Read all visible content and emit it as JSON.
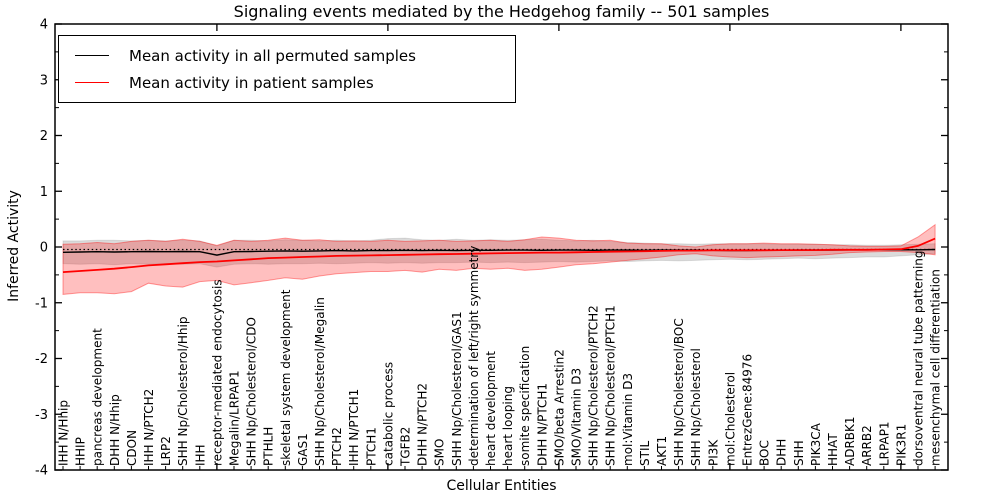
{
  "chart_data": {
    "type": "line",
    "title": "Signaling events mediated by the Hedgehog family -- 501 samples",
    "xlabel": "Cellular Entities",
    "ylabel": "Inferred Activity",
    "ylim": [
      -4,
      4
    ],
    "ytick_labels": [
      "4",
      "3",
      "2",
      "1",
      "0",
      "-1",
      "-2",
      "-3",
      "-4"
    ],
    "xtick_major_positions": [
      10,
      20,
      30,
      40,
      50
    ],
    "grid": false,
    "legend": {
      "position": "upper left",
      "entries": [
        {
          "label": "Mean activity in all permuted samples",
          "color": "#000000"
        },
        {
          "label": "Mean activity in patient samples",
          "color": "#ff0000"
        }
      ]
    },
    "categories": [
      "IHH N/Hhip",
      "HHIP",
      "pancreas development",
      "DHH N/Hhip",
      "CDON",
      "IHH N/PTCH2",
      "LRP2",
      "SHH Np/Cholesterol/Hhip",
      "IHH",
      "receptor-mediated endocytosis",
      "Megalin/LRPAP1",
      "SHH Np/Cholesterol/CDO",
      "PTHLH",
      "skeletal system development",
      "GAS1",
      "SHH Np/Cholesterol/Megalin",
      "PTCH2",
      "IHH N/PTCH1",
      "PTCH1",
      "catabolic process",
      "TGFB2",
      "DHH N/PTCH2",
      "SMO",
      "SHH Np/Cholesterol/GAS1",
      "determination of left/right symmetry",
      "heart development",
      "heart looping",
      "somite specification",
      "DHH N/PTCH1",
      "SMO/beta Arrestin2",
      "SMO/Vitamin D3",
      "SHH Np/Cholesterol/PTCH2",
      "SHH Np/Cholesterol/PTCH1",
      "mol:Vitamin D3",
      "STIL",
      "AKT1",
      "SHH Np/Cholesterol/BOC",
      "SHH Np/Cholesterol",
      "PI3K",
      "mol:Cholesterol",
      "EntrezGene:84976",
      "BOC",
      "DHH",
      "SHH",
      "PIK3CA",
      "HHAT",
      "ADRBK1",
      "ARRB2",
      "LRPAP1",
      "PIK3R1",
      "dorsoventral neural tube patterning",
      "mesenchymal cell differentiation"
    ],
    "series": [
      {
        "name": "Mean activity in all permuted samples",
        "color": "#000000",
        "values": [
          -0.095,
          -0.09,
          -0.085,
          -0.09,
          -0.085,
          -0.08,
          -0.085,
          -0.08,
          -0.085,
          -0.145,
          -0.085,
          -0.08,
          -0.075,
          -0.07,
          -0.075,
          -0.07,
          -0.065,
          -0.07,
          -0.065,
          -0.065,
          -0.06,
          -0.065,
          -0.06,
          -0.065,
          -0.06,
          -0.06,
          -0.055,
          -0.055,
          -0.06,
          -0.055,
          -0.055,
          -0.06,
          -0.055,
          -0.055,
          -0.06,
          -0.055,
          -0.055,
          -0.055,
          -0.06,
          -0.065,
          -0.065,
          -0.06,
          -0.06,
          -0.055,
          -0.055,
          -0.055,
          -0.05,
          -0.05,
          -0.05,
          -0.05,
          -0.05,
          -0.045
        ]
      },
      {
        "name": "Mean activity in patient samples",
        "color": "#ff0000",
        "values": [
          -0.45,
          -0.43,
          -0.41,
          -0.39,
          -0.36,
          -0.33,
          -0.31,
          -0.29,
          -0.27,
          -0.26,
          -0.24,
          -0.22,
          -0.2,
          -0.19,
          -0.18,
          -0.17,
          -0.16,
          -0.155,
          -0.15,
          -0.145,
          -0.14,
          -0.135,
          -0.13,
          -0.125,
          -0.12,
          -0.115,
          -0.11,
          -0.105,
          -0.1,
          -0.1,
          -0.095,
          -0.09,
          -0.085,
          -0.08,
          -0.075,
          -0.07,
          -0.065,
          -0.065,
          -0.06,
          -0.06,
          -0.06,
          -0.06,
          -0.055,
          -0.055,
          -0.055,
          -0.05,
          -0.05,
          -0.05,
          -0.045,
          -0.04,
          0.02,
          0.15
        ]
      }
    ],
    "bands": [
      {
        "name": "permuted samples range",
        "fill": "rgba(0,0,0,0.14)",
        "edge": "rgba(0,0,0,0.10)",
        "upper": [
          0.11,
          0.11,
          0.12,
          0.12,
          0.11,
          0.12,
          0.11,
          0.12,
          0.11,
          0.02,
          0.12,
          0.12,
          0.11,
          0.13,
          0.12,
          0.11,
          0.12,
          0.11,
          0.12,
          0.15,
          0.16,
          0.13,
          0.12,
          0.14,
          0.12,
          0.13,
          0.12,
          0.13,
          0.14,
          0.12,
          0.11,
          0.12,
          0.1,
          0.08,
          0.07,
          0.06,
          0.06,
          0.05,
          0.06,
          0.06,
          0.06,
          0.06,
          0.05,
          0.05,
          0.05,
          0.04,
          0.04,
          0.03,
          0.03,
          0.04,
          0.05,
          0.06
        ],
        "lower": [
          -0.3,
          -0.31,
          -0.3,
          -0.32,
          -0.3,
          -0.31,
          -0.3,
          -0.31,
          -0.3,
          -0.36,
          -0.31,
          -0.3,
          -0.31,
          -0.3,
          -0.3,
          -0.29,
          -0.3,
          -0.29,
          -0.28,
          -0.29,
          -0.28,
          -0.29,
          -0.28,
          -0.28,
          -0.27,
          -0.28,
          -0.27,
          -0.28,
          -0.27,
          -0.26,
          -0.27,
          -0.26,
          -0.25,
          -0.26,
          -0.25,
          -0.24,
          -0.25,
          -0.24,
          -0.23,
          -0.22,
          -0.23,
          -0.22,
          -0.21,
          -0.2,
          -0.21,
          -0.2,
          -0.19,
          -0.18,
          -0.18,
          -0.16,
          -0.14,
          -0.12
        ]
      },
      {
        "name": "patient samples range",
        "fill": "rgba(255,0,0,0.25)",
        "edge": "rgba(255,0,0,0.38)",
        "upper": [
          0.05,
          0.06,
          0.08,
          0.06,
          0.1,
          0.12,
          0.1,
          0.14,
          0.1,
          0.03,
          0.12,
          0.1,
          0.12,
          0.16,
          0.12,
          0.13,
          0.1,
          0.11,
          0.1,
          0.12,
          0.1,
          0.11,
          0.12,
          0.1,
          0.11,
          0.12,
          0.1,
          0.13,
          0.18,
          0.16,
          0.12,
          0.11,
          0.12,
          0.07,
          0.06,
          0.06,
          0.02,
          0.0,
          0.04,
          0.06,
          0.06,
          0.07,
          0.06,
          0.06,
          0.05,
          0.04,
          0.02,
          0.01,
          0.01,
          0.02,
          0.18,
          0.4
        ],
        "lower": [
          -0.85,
          -0.82,
          -0.82,
          -0.84,
          -0.8,
          -0.65,
          -0.7,
          -0.72,
          -0.62,
          -0.6,
          -0.68,
          -0.64,
          -0.6,
          -0.55,
          -0.58,
          -0.52,
          -0.48,
          -0.46,
          -0.44,
          -0.44,
          -0.42,
          -0.45,
          -0.4,
          -0.42,
          -0.38,
          -0.4,
          -0.38,
          -0.42,
          -0.4,
          -0.36,
          -0.32,
          -0.3,
          -0.27,
          -0.24,
          -0.21,
          -0.18,
          -0.14,
          -0.12,
          -0.16,
          -0.18,
          -0.19,
          -0.18,
          -0.17,
          -0.16,
          -0.15,
          -0.13,
          -0.1,
          -0.09,
          -0.08,
          -0.08,
          -0.1,
          -0.14
        ]
      }
    ],
    "reference_line": {
      "style": "dotted",
      "color": "#000000",
      "value": -0.045
    }
  }
}
